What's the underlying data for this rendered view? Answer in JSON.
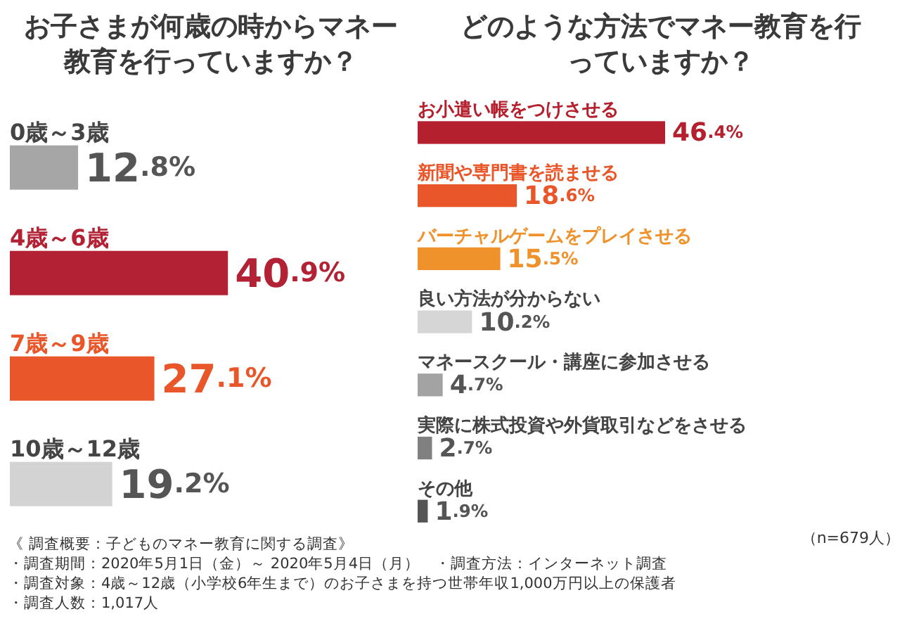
{
  "chart_data": [
    {
      "type": "bar",
      "orientation": "horizontal",
      "title": "お子さまが何歳の時からマネー教育を行っていますか？",
      "categories": [
        "0歳～3歳",
        "4歳～6歳",
        "7歳～9歳",
        "10歳～12歳"
      ],
      "values": [
        12.8,
        40.9,
        27.1,
        19.2
      ],
      "value_labels": [
        "12.8%",
        "40.9%",
        "27.1%",
        "19.2%"
      ],
      "colors": [
        "#a6a6a6",
        "#b22234",
        "#e8562a",
        "#d3d3d3"
      ],
      "annotations": [
        "《 調査概要：子どものマネー教育に関する調査》",
        "・調査期間：2020年5月1日（金）～ 2020年5月4日（月）　・調査方法：インターネット調査",
        "・調査対象：4歳～12歳（小学校6年生まで）のお子さまを持つ世帯年収1,000万円以上の保護者",
        "・調査人数：1,017人"
      ]
    },
    {
      "type": "bar",
      "orientation": "horizontal",
      "title": "どのような方法でマネー教育を行っていますか？",
      "categories": [
        "お小遣い帳をつけさせる",
        "新聞や専門書を読ませる",
        "バーチャルゲームをプレイさせる",
        "良い方法が分からない",
        "マネースクール・講座に参加させる",
        "実際に株式投資や外貨取引などをさせる",
        "その他"
      ],
      "values": [
        46.4,
        18.6,
        15.5,
        10.2,
        4.7,
        2.7,
        1.9
      ],
      "value_labels": [
        "46.4%",
        "18.6%",
        "15.5%",
        "10.2%",
        "4.7%",
        "2.7%",
        "1.9%"
      ],
      "colors": [
        "#b5202e",
        "#e8562a",
        "#f0922b",
        "#d6d6d6",
        "#a3a3a3",
        "#808080",
        "#555555"
      ],
      "annotations": [
        "（n=679人）"
      ]
    }
  ]
}
